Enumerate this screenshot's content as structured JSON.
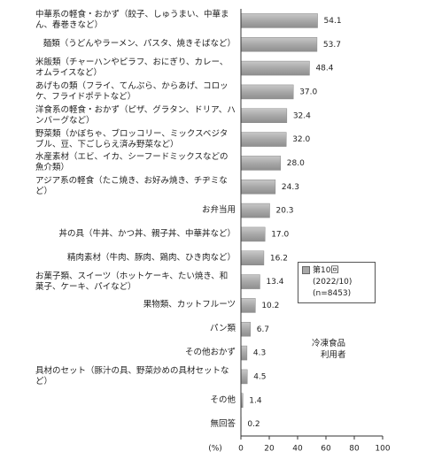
{
  "chart_data": {
    "type": "hbar",
    "categories": [
      "中華系の軽食・おかず（餃子、しゅうまい、中華まん、春巻きなど）",
      "麺類（うどんやラーメン、パスタ、焼きそばなど）",
      "米飯類（チャーハンやピラフ、おにぎり、カレー、オムライスなど）",
      "あげもの類（フライ、てんぷら、からあげ、コロッケ、フライドポテトなど）",
      "洋食系の軽食・おかず（ピザ、グラタン、ドリア、ハンバーグなど）",
      "野菜類（かぼちゃ、ブロッコリー、ミックスベジタブル、豆、下ごしらえ済み野菜など）",
      "水産素材（エビ、イカ、シーフードミックスなどの魚介類）",
      "アジア系の軽食（たこ焼き、お好み焼き、チヂミなど）",
      "お弁当用",
      "丼の具（牛丼、かつ丼、親子丼、中華丼など）",
      "精肉素材（牛肉、豚肉、鶏肉、ひき肉など）",
      "お菓子類、スイーツ（ホットケーキ、たい焼き、和菓子、ケーキ、パイなど）",
      "果物類、カットフルーツ",
      "パン類",
      "その他おかず",
      "具材のセット（豚汁の具、野菜炒めの具材セットなど）",
      "その他",
      "無回答"
    ],
    "series": [
      {
        "name": "第10回",
        "color": "#a8a8a8",
        "values": [
          54.1,
          53.7,
          48.4,
          37.0,
          32.4,
          32.0,
          28.0,
          24.3,
          20.3,
          17.0,
          16.2,
          13.4,
          10.2,
          6.7,
          4.3,
          4.5,
          1.4,
          0.2
        ],
        "value_labels": [
          "54.1",
          "53.7",
          "48.4",
          "37.0",
          "32.4",
          "32.0",
          "28.0",
          "24.3",
          "20.3",
          "17.0",
          "16.2",
          "13.4",
          "10.2",
          "6.7",
          "4.3",
          "4.5",
          "1.4",
          "0.2"
        ]
      }
    ],
    "legend_notes": [
      "(2022/10)",
      "(n=8453)"
    ],
    "annotations": [
      "冷凍食品",
      "利用者"
    ],
    "x_unit_label": "(%)",
    "xlim": [
      0,
      100
    ],
    "xticks": [
      0,
      20,
      40,
      60,
      80,
      100
    ]
  }
}
